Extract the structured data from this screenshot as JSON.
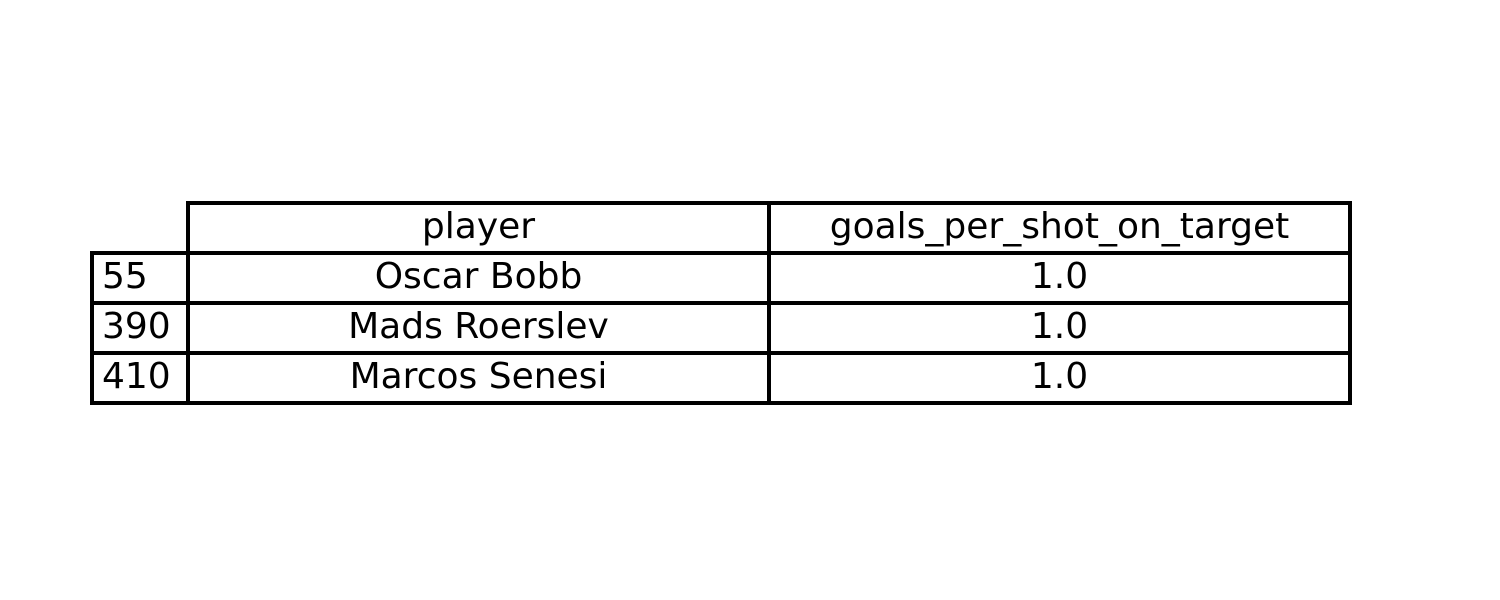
{
  "chart_data": {
    "type": "table",
    "columns": [
      "player",
      "goals_per_shot_on_target"
    ],
    "rows": [
      {
        "index": "55",
        "player": "Oscar Bobb",
        "goals_per_shot_on_target": "1.0"
      },
      {
        "index": "390",
        "player": "Mads Roerslev",
        "goals_per_shot_on_target": "1.0"
      },
      {
        "index": "410",
        "player": "Marcos Senesi",
        "goals_per_shot_on_target": "1.0"
      }
    ]
  },
  "colors": {
    "text": "#000000",
    "border": "#000000",
    "background": "#ffffff"
  }
}
